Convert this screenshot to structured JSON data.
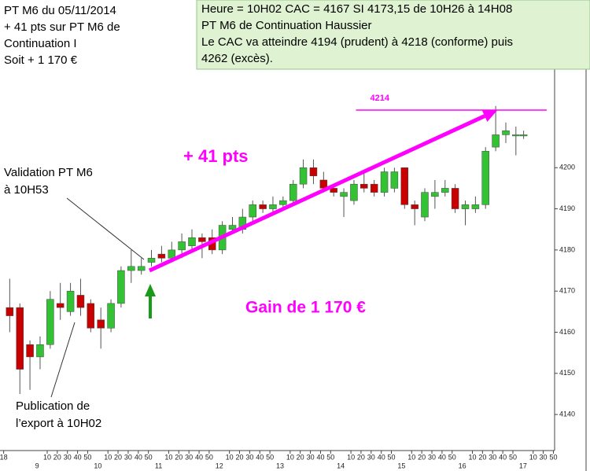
{
  "chart_data": {
    "type": "candlestick",
    "x": [
      8.55,
      8.717,
      8.883,
      9.05,
      9.217,
      9.383,
      9.55,
      9.717,
      9.883,
      10.05,
      10.217,
      10.383,
      10.55,
      10.717,
      10.883,
      11.05,
      11.217,
      11.383,
      11.55,
      11.717,
      11.883,
      12.05,
      12.217,
      12.383,
      12.55,
      12.717,
      12.883,
      13.05,
      13.217,
      13.383,
      13.55,
      13.717,
      13.883,
      14.05,
      14.217,
      14.383,
      14.55,
      14.717,
      14.883,
      15.05,
      15.217,
      15.383,
      15.55,
      15.717,
      15.883,
      16.05,
      16.217,
      16.383,
      16.55,
      16.717,
      16.883,
      17.01
    ],
    "open": [
      4166,
      4166,
      4157,
      4154,
      4157,
      4167,
      4165,
      4169,
      4167,
      4163,
      4161,
      4167,
      4175,
      4175,
      4177,
      4179,
      4178,
      4180,
      4181,
      4183,
      4183,
      4180,
      4185,
      4185,
      4188,
      4191,
      4190,
      4191,
      4192,
      4196,
      4200,
      4197,
      4195,
      4193,
      4192,
      4196,
      4196,
      4194,
      4195,
      4200,
      4191,
      4188,
      4193,
      4194,
      4195,
      4190,
      4190,
      4191,
      4205,
      4208,
      4208,
      4208
    ],
    "high": [
      4173,
      4167,
      4158,
      4159,
      4170,
      4172,
      4172,
      4173,
      4168,
      4166,
      4168,
      4176,
      4180,
      4178,
      4180,
      4181,
      4182,
      4184,
      4185,
      4184,
      4185,
      4187,
      4188,
      4190,
      4192,
      4192,
      4193,
      4193,
      4197,
      4202,
      4202,
      4199,
      4196,
      4195,
      4197,
      4199,
      4197,
      4200,
      4200,
      4200,
      4192,
      4195,
      4197,
      4197,
      4196,
      4192,
      4193,
      4205,
      4215,
      4211,
      4210,
      4209
    ],
    "low": [
      4160,
      4145,
      4146,
      4151,
      4156,
      4163,
      4164,
      4164,
      4160,
      4156,
      4160,
      4166,
      4172,
      4174,
      4176,
      4177,
      4177,
      4178,
      4180,
      4178,
      4179,
      4179,
      4184,
      4184,
      4187,
      4189,
      4189,
      4190,
      4191,
      4195,
      4196,
      4194,
      4193,
      4188,
      4191,
      4194,
      4193,
      4193,
      4194,
      4190,
      4186,
      4187,
      4190,
      4193,
      4189,
      4186,
      4189,
      4190,
      4204,
      4206,
      4203,
      4207
    ],
    "close": [
      4164,
      4151,
      4154,
      4157,
      4168,
      4166,
      4170,
      4166,
      4161,
      4161,
      4167,
      4175,
      4176,
      4176,
      4178,
      4178,
      4180,
      4182,
      4183,
      4182,
      4180,
      4186,
      4186,
      4188,
      4191,
      4190,
      4191,
      4192,
      4196,
      4200,
      4198,
      4195,
      4194,
      4194,
      4196,
      4195,
      4194,
      4199,
      4199,
      4191,
      4190,
      4194,
      4194,
      4195,
      4190,
      4191,
      4191,
      4204,
      4208,
      4209,
      4208,
      4208
    ],
    "up_color": "#33c233",
    "down_color": "#c80000",
    "xlim": [
      8.39,
      17.52
    ],
    "ylim": [
      4132,
      4240
    ],
    "yticks": [
      4140,
      4150,
      4160,
      4170,
      4180,
      4190,
      4200
    ],
    "xticks": [
      {
        "value": 8.45,
        "label": "18"
      },
      {
        "value": 9.167,
        "label": "10"
      },
      {
        "value": 9.333,
        "label": "20"
      },
      {
        "value": 9.5,
        "label": "30"
      },
      {
        "value": 9.667,
        "label": "40"
      },
      {
        "value": 9.833,
        "label": "50"
      },
      {
        "value": 10.167,
        "label": "10"
      },
      {
        "value": 10.333,
        "label": "20"
      },
      {
        "value": 10.5,
        "label": "30"
      },
      {
        "value": 10.667,
        "label": "40"
      },
      {
        "value": 10.833,
        "label": "50"
      },
      {
        "value": 11.167,
        "label": "10"
      },
      {
        "value": 11.333,
        "label": "20"
      },
      {
        "value": 11.5,
        "label": "30"
      },
      {
        "value": 11.667,
        "label": "40"
      },
      {
        "value": 11.833,
        "label": "50"
      },
      {
        "value": 12.167,
        "label": "10"
      },
      {
        "value": 12.333,
        "label": "20"
      },
      {
        "value": 12.5,
        "label": "30"
      },
      {
        "value": 12.667,
        "label": "40"
      },
      {
        "value": 12.833,
        "label": "50"
      },
      {
        "value": 13.167,
        "label": "10"
      },
      {
        "value": 13.333,
        "label": "20"
      },
      {
        "value": 13.5,
        "label": "30"
      },
      {
        "value": 13.667,
        "label": "40"
      },
      {
        "value": 13.833,
        "label": "50"
      },
      {
        "value": 14.167,
        "label": "10"
      },
      {
        "value": 14.333,
        "label": "20"
      },
      {
        "value": 14.5,
        "label": "30"
      },
      {
        "value": 14.667,
        "label": "40"
      },
      {
        "value": 14.833,
        "label": "50"
      },
      {
        "value": 15.167,
        "label": "10"
      },
      {
        "value": 15.333,
        "label": "20"
      },
      {
        "value": 15.5,
        "label": "30"
      },
      {
        "value": 15.667,
        "label": "40"
      },
      {
        "value": 15.833,
        "label": "50"
      },
      {
        "value": 16.167,
        "label": "10"
      },
      {
        "value": 16.333,
        "label": "20"
      },
      {
        "value": 16.5,
        "label": "30"
      },
      {
        "value": 16.667,
        "label": "40"
      },
      {
        "value": 16.833,
        "label": "50"
      },
      {
        "value": 17.167,
        "label": "10"
      },
      {
        "value": 17.333,
        "label": "30"
      },
      {
        "value": 17.5,
        "label": "50"
      }
    ],
    "hour_ticks": [
      9,
      10,
      11,
      12,
      13,
      14,
      15,
      16,
      17
    ],
    "target": {
      "label": "4214",
      "value": 4214,
      "xlim": [
        14.25,
        17.39
      ]
    },
    "trend_arrow": {
      "from": [
        10.85,
        4175
      ],
      "to": [
        16.58,
        4214
      ],
      "color": "#ff00ff"
    },
    "annotations": {
      "gain_pts": "+ 41 pts",
      "gain_eur": "Gain de 1 170 €",
      "validation": [
        "Validation PT M6",
        "à 10H53"
      ],
      "publication": [
        "Publication de",
        "l’export à 10H02"
      ]
    },
    "box_left": [
      "PT M6 du 05/11/2014",
      "+ 41 pts sur PT M6 de",
      "Continuation I",
      "Soit +  1 170 €"
    ],
    "box_right": [
      "Heure = 10H02  CAC = 4167  SI 4173,15 de 10H26 à 14H08",
      "PT M6 de Continuation Haussier",
      "Le CAC va atteindre 4194 (prudent) à 4218 (conforme) puis",
      "4262 (excès)."
    ]
  }
}
